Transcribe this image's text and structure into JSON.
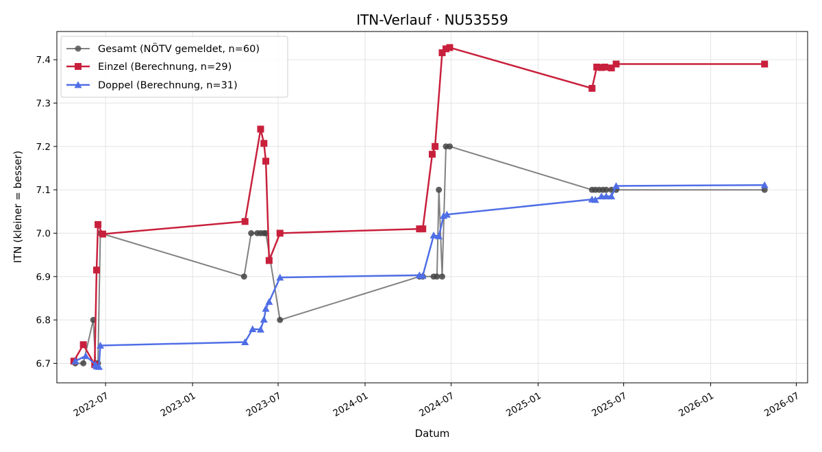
{
  "chart_data": {
    "type": "line",
    "title": "ITN-Verlauf · NU53559",
    "xlabel": "Datum",
    "ylabel": "ITN  (kleiner = besser)",
    "xlim": [
      "2022-03-20",
      "2026-07-25"
    ],
    "ylim": [
      6.655,
      7.465
    ],
    "x_ticks": [
      "2022-07",
      "2023-01",
      "2023-07",
      "2024-01",
      "2024-07",
      "2025-01",
      "2025-07",
      "2026-01",
      "2026-07"
    ],
    "y_ticks": [
      "6.7",
      "6.8",
      "6.9",
      "7.0",
      "7.1",
      "7.2",
      "7.3",
      "7.4"
    ],
    "grid": true,
    "legend_position": "top-left",
    "series": [
      {
        "name": "Gesamt (NÖTV gemeldet, n=60)",
        "color": "#555555",
        "marker": "circle",
        "points": [
          [
            "2022-04-28",
            6.7
          ],
          [
            "2022-05-15",
            6.7
          ],
          [
            "2022-06-05",
            6.8
          ],
          [
            "2022-06-10",
            6.7
          ],
          [
            "2022-06-15",
            6.7
          ],
          [
            "2022-06-20",
            7.0
          ],
          [
            "2023-04-20",
            6.9
          ],
          [
            "2023-05-05",
            7.0
          ],
          [
            "2023-05-18",
            7.0
          ],
          [
            "2023-05-25",
            7.0
          ],
          [
            "2023-06-01",
            7.0
          ],
          [
            "2023-06-05",
            7.0
          ],
          [
            "2023-07-05",
            6.8
          ],
          [
            "2024-04-25",
            6.9
          ],
          [
            "2024-05-02",
            6.9
          ],
          [
            "2024-05-25",
            6.9
          ],
          [
            "2024-06-01",
            6.9
          ],
          [
            "2024-06-05",
            7.1
          ],
          [
            "2024-06-12",
            6.9
          ],
          [
            "2024-06-20",
            7.2
          ],
          [
            "2024-06-28",
            7.2
          ],
          [
            "2025-04-25",
            7.1
          ],
          [
            "2025-05-02",
            7.1
          ],
          [
            "2025-05-10",
            7.1
          ],
          [
            "2025-05-18",
            7.1
          ],
          [
            "2025-05-25",
            7.1
          ],
          [
            "2025-06-05",
            7.1
          ],
          [
            "2025-06-15",
            7.1
          ],
          [
            "2026-04-25",
            7.1
          ]
        ]
      },
      {
        "name": "Einzel (Berechnung, n=29)",
        "color": "#c8203c",
        "marker": "square",
        "points": [
          [
            "2022-04-25",
            6.705
          ],
          [
            "2022-05-15",
            6.743
          ],
          [
            "2022-06-08",
            6.697
          ],
          [
            "2022-06-12",
            6.915
          ],
          [
            "2022-06-15",
            7.02
          ],
          [
            "2022-06-25",
            6.998
          ],
          [
            "2023-04-22",
            7.027
          ],
          [
            "2023-05-25",
            7.24
          ],
          [
            "2023-06-01",
            7.207
          ],
          [
            "2023-06-05",
            7.166
          ],
          [
            "2023-06-12",
            6.937
          ],
          [
            "2023-07-05",
            7.0
          ],
          [
            "2024-04-25",
            7.01
          ],
          [
            "2024-05-02",
            7.01
          ],
          [
            "2024-05-22",
            7.182
          ],
          [
            "2024-05-28",
            7.2
          ],
          [
            "2024-06-12",
            7.416
          ],
          [
            "2024-06-20",
            7.425
          ],
          [
            "2024-06-28",
            7.428
          ],
          [
            "2025-04-25",
            7.334
          ],
          [
            "2025-05-05",
            7.383
          ],
          [
            "2025-05-15",
            7.382
          ],
          [
            "2025-05-22",
            7.383
          ],
          [
            "2025-06-05",
            7.381
          ],
          [
            "2025-06-15",
            7.39
          ],
          [
            "2026-04-25",
            7.39
          ]
        ]
      },
      {
        "name": "Doppel (Berechnung, n=31)",
        "color": "#4f6ee6",
        "marker": "triangle",
        "points": [
          [
            "2022-04-28",
            6.705
          ],
          [
            "2022-05-20",
            6.717
          ],
          [
            "2022-06-10",
            6.697
          ],
          [
            "2022-06-12",
            6.693
          ],
          [
            "2022-06-17",
            6.692
          ],
          [
            "2022-06-20",
            6.741
          ],
          [
            "2023-04-22",
            6.749
          ],
          [
            "2023-05-08",
            6.779
          ],
          [
            "2023-05-25",
            6.778
          ],
          [
            "2023-06-01",
            6.801
          ],
          [
            "2023-06-05",
            6.826
          ],
          [
            "2023-06-12",
            6.842
          ],
          [
            "2023-07-05",
            6.898
          ],
          [
            "2024-04-25",
            6.903
          ],
          [
            "2024-05-02",
            6.902
          ],
          [
            "2024-05-25",
            6.995
          ],
          [
            "2024-06-05",
            6.993
          ],
          [
            "2024-06-15",
            7.04
          ],
          [
            "2024-06-22",
            7.043
          ],
          [
            "2025-04-25",
            7.078
          ],
          [
            "2025-05-02",
            7.077
          ],
          [
            "2025-05-15",
            7.085
          ],
          [
            "2025-05-25",
            7.085
          ],
          [
            "2025-06-05",
            7.085
          ],
          [
            "2025-06-15",
            7.109
          ],
          [
            "2026-04-25",
            7.111
          ]
        ]
      }
    ]
  }
}
